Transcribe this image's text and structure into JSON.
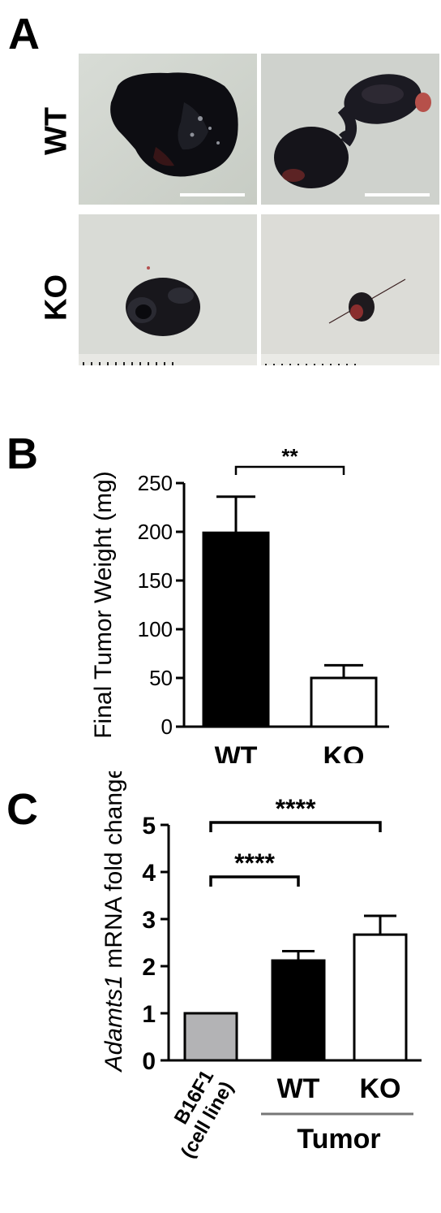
{
  "panels": {
    "a": {
      "letter": "A",
      "rows": [
        {
          "label": "WT"
        },
        {
          "label": "KO"
        }
      ]
    },
    "b": {
      "letter": "B"
    },
    "c": {
      "letter": "C"
    }
  },
  "chart_data": [
    {
      "type": "bar",
      "categories": [
        "WT",
        "KO"
      ],
      "values": [
        199,
        50
      ],
      "errors": [
        37,
        13
      ],
      "bar_colors": [
        "#000000",
        "#ffffff"
      ],
      "ylabel": "Final Tumor Weight (mg)",
      "ylim": [
        0,
        250
      ],
      "yticks": [
        0,
        50,
        100,
        150,
        200,
        250
      ],
      "annotations": [
        {
          "from": "WT",
          "to": "KO",
          "text": "**"
        }
      ]
    },
    {
      "type": "bar",
      "categories": [
        "B16F1 (cell line)",
        "WT",
        "KO"
      ],
      "category_lines": [
        [
          "B16F1",
          "(cell line)"
        ],
        [
          "WT"
        ],
        [
          "KO"
        ]
      ],
      "values": [
        1.0,
        2.12,
        2.67
      ],
      "errors": [
        0,
        0.2,
        0.4
      ],
      "bar_colors": [
        "#b3b3b5",
        "#000000",
        "#ffffff"
      ],
      "ylabel_italic": "Adamts1",
      "ylabel_rest": " mRNA fold change",
      "ylim": [
        0,
        5
      ],
      "yticks": [
        0,
        1,
        2,
        3,
        4,
        5
      ],
      "group_label": "Tumor",
      "annotations": [
        {
          "from": "B16F1 (cell line)",
          "to": "WT",
          "text": "****"
        },
        {
          "from": "B16F1 (cell line)",
          "to": "KO",
          "text": "****"
        }
      ]
    }
  ]
}
